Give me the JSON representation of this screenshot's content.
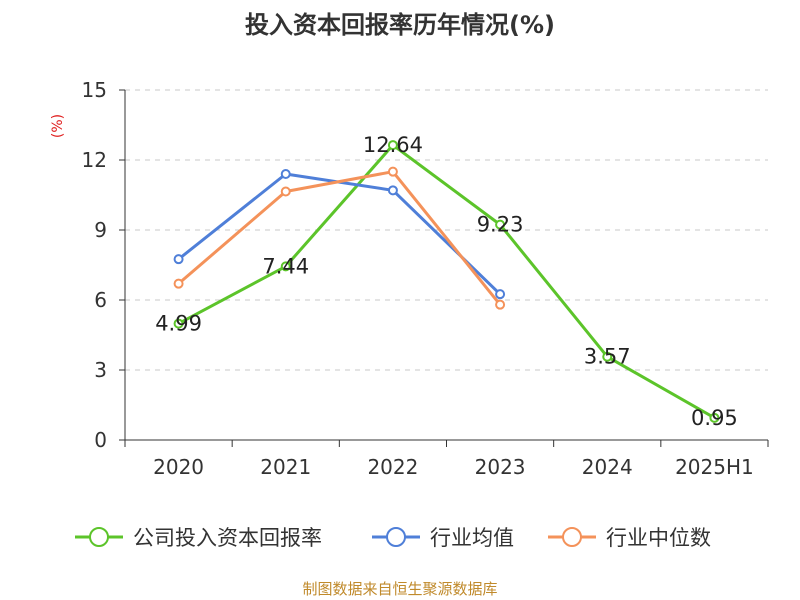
{
  "chart_data": {
    "type": "line",
    "title": "投入资本回报率历年情况(%)",
    "yunit": "(%)",
    "categories": [
      "2020",
      "2021",
      "2022",
      "2023",
      "2024",
      "2025H1"
    ],
    "ylim": [
      0,
      15
    ],
    "yticks": [
      0,
      3,
      6,
      9,
      12,
      15
    ],
    "grid": true,
    "legend_position": "bottom",
    "series": [
      {
        "name": "公司投入资本回报率",
        "color": "#5cc42a",
        "values": [
          4.99,
          7.44,
          12.64,
          9.23,
          3.57,
          0.95
        ],
        "labels": [
          "4.99",
          "7.44",
          "12.64",
          "9.23",
          "3.57",
          "0.95"
        ]
      },
      {
        "name": "行业均值",
        "color": "#4f7fd8",
        "values": [
          7.75,
          11.4,
          10.7,
          6.25,
          null,
          null
        ]
      },
      {
        "name": "行业中位数",
        "color": "#f4925a",
        "values": [
          6.7,
          10.65,
          11.5,
          5.8,
          null,
          null
        ]
      }
    ],
    "source": "制图数据来自恒生聚源数据库"
  }
}
